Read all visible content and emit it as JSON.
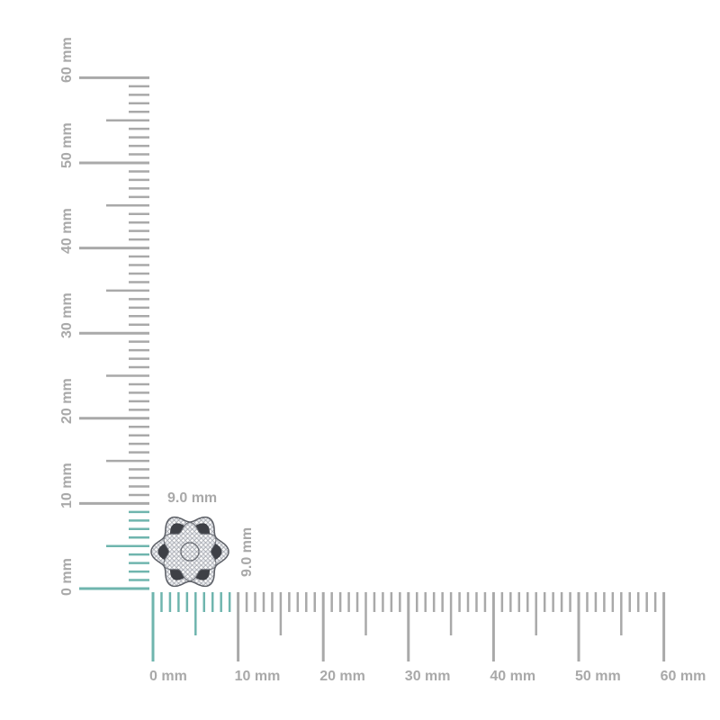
{
  "horizontal_ruler": {
    "labels": [
      "0 mm",
      "10 mm",
      "20 mm",
      "30 mm",
      "40 mm",
      "50 mm",
      "60 mm"
    ],
    "max_mm": 60,
    "highlight_mm": 9
  },
  "vertical_ruler": {
    "labels": [
      "0 mm",
      "10 mm",
      "20 mm",
      "30 mm",
      "40 mm",
      "50 mm",
      "60 mm"
    ],
    "max_mm": 60,
    "highlight_mm": 9
  },
  "measurements": {
    "width": "9.0 mm",
    "height": "9.0 mm"
  },
  "product": {
    "name": "flower-earring"
  },
  "colors": {
    "ruler": "#a9a9a9",
    "highlight": "#6fb5ae"
  }
}
